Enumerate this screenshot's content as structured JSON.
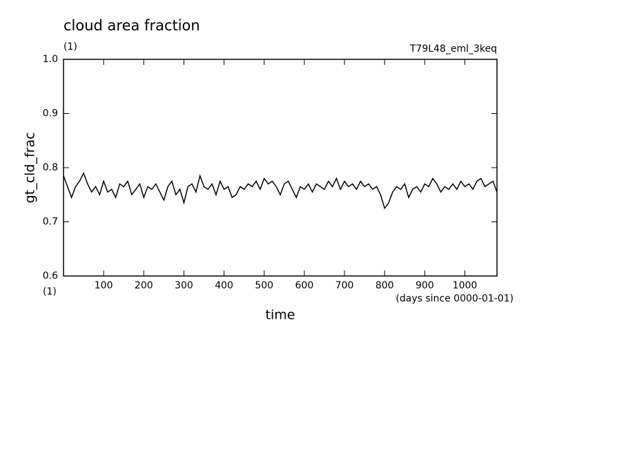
{
  "chart_data": {
    "type": "line",
    "title": "cloud area fraction",
    "unit": "(1)",
    "run_label": "T79L48_eml_3keq",
    "y_label": "gt_cld_frac",
    "x_unit": "(1)",
    "x_note": "(days since 0000-01-01)",
    "x_label": "time",
    "xlim": [
      0,
      1080
    ],
    "ylim": [
      0.6,
      1.0
    ],
    "xticks": [
      100,
      200,
      300,
      400,
      500,
      600,
      700,
      800,
      900,
      1000
    ],
    "yticks": [
      0.6,
      0.7,
      0.8,
      0.9,
      {
        "value": 1.0,
        "label": "1.0"
      }
    ],
    "x": [
      0,
      10,
      20,
      30,
      40,
      50,
      60,
      70,
      80,
      90,
      100,
      110,
      120,
      130,
      140,
      150,
      160,
      170,
      180,
      190,
      200,
      210,
      220,
      230,
      240,
      250,
      260,
      270,
      280,
      290,
      300,
      310,
      320,
      330,
      340,
      350,
      360,
      370,
      380,
      390,
      400,
      410,
      420,
      430,
      440,
      450,
      460,
      470,
      480,
      490,
      500,
      510,
      520,
      530,
      540,
      550,
      560,
      570,
      580,
      590,
      600,
      610,
      620,
      630,
      640,
      650,
      660,
      670,
      680,
      690,
      700,
      710,
      720,
      730,
      740,
      750,
      760,
      770,
      780,
      790,
      800,
      810,
      820,
      830,
      840,
      850,
      860,
      870,
      880,
      890,
      900,
      910,
      920,
      930,
      940,
      950,
      960,
      970,
      980,
      990,
      1000,
      1010,
      1020,
      1030,
      1040,
      1050,
      1060,
      1070,
      1080
    ],
    "series": [
      {
        "name": "gt_cld_frac",
        "color": "#000000",
        "values": [
          0.785,
          0.765,
          0.745,
          0.765,
          0.775,
          0.79,
          0.77,
          0.755,
          0.765,
          0.75,
          0.775,
          0.755,
          0.76,
          0.745,
          0.77,
          0.765,
          0.775,
          0.75,
          0.76,
          0.77,
          0.745,
          0.765,
          0.76,
          0.77,
          0.755,
          0.74,
          0.765,
          0.775,
          0.75,
          0.76,
          0.735,
          0.765,
          0.77,
          0.755,
          0.785,
          0.765,
          0.76,
          0.77,
          0.75,
          0.775,
          0.76,
          0.765,
          0.745,
          0.75,
          0.765,
          0.76,
          0.77,
          0.765,
          0.775,
          0.76,
          0.78,
          0.77,
          0.775,
          0.765,
          0.75,
          0.77,
          0.775,
          0.76,
          0.745,
          0.765,
          0.76,
          0.77,
          0.755,
          0.77,
          0.765,
          0.76,
          0.775,
          0.765,
          0.78,
          0.76,
          0.775,
          0.765,
          0.77,
          0.76,
          0.775,
          0.765,
          0.77,
          0.76,
          0.765,
          0.75,
          0.725,
          0.735,
          0.755,
          0.765,
          0.76,
          0.77,
          0.745,
          0.76,
          0.765,
          0.755,
          0.77,
          0.765,
          0.78,
          0.77,
          0.755,
          0.765,
          0.76,
          0.77,
          0.76,
          0.775,
          0.765,
          0.77,
          0.76,
          0.775,
          0.78,
          0.765,
          0.77,
          0.775,
          0.755
        ]
      }
    ]
  }
}
